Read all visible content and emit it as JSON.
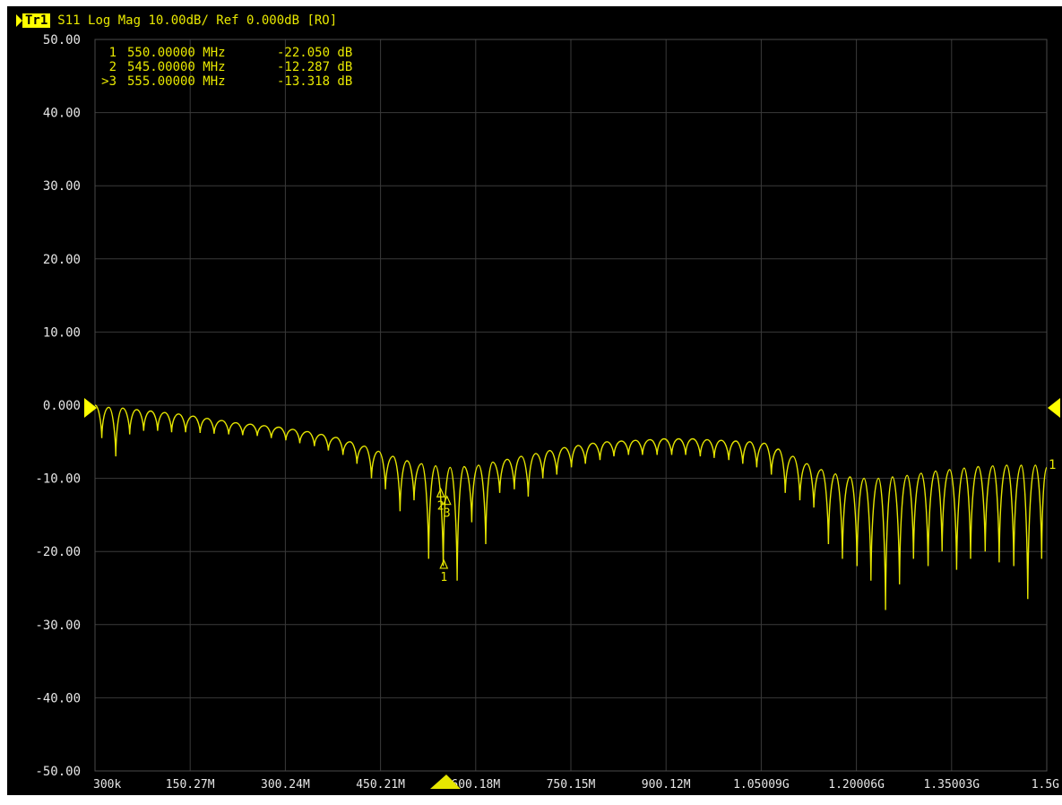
{
  "header": {
    "trace_label": "Tr1",
    "trace_info": "S11 Log Mag 10.00dB/ Ref 0.000dB [RO]"
  },
  "colors": {
    "background": "#000000",
    "grid": "#3a3a3a",
    "trace": "#e6e600",
    "ref_marker": "#ffff00",
    "axis_text": "#e6e6e6"
  },
  "marker_table": [
    {
      "id": "1",
      "freq": "550.00000 MHz",
      "value": "-22.050 dB"
    },
    {
      "id": "2",
      "freq": "545.00000 MHz",
      "value": "-12.287 dB"
    },
    {
      "id": ">3",
      "freq": "555.00000 MHz",
      "value": "-13.318 dB"
    }
  ],
  "chart_data": {
    "type": "line",
    "title": "S11 Log Mag 10.00dB/ Ref 0.000dB [RO]",
    "xlabel": "",
    "ylabel": "",
    "x_range_hz": [
      300000,
      1500000000
    ],
    "ylim": [
      -50,
      50
    ],
    "y_ticks": [
      "50.00",
      "40.00",
      "30.00",
      "20.00",
      "10.00",
      "0.000",
      "-10.00",
      "-20.00",
      "-30.00",
      "-40.00",
      "-50.00"
    ],
    "x_ticks": [
      "300k",
      "150.27M",
      "300.24M",
      "450.21M",
      "600.18M",
      "750.15M",
      "900.12M",
      "1.05009G",
      "1.20006G",
      "1.35003G",
      "1.5G"
    ],
    "grid": true,
    "reference_level_db": 0,
    "markers": [
      {
        "label": "1",
        "x_mhz": 550,
        "y_db": -22.05
      },
      {
        "label": "2",
        "x_mhz": 545,
        "y_db": -12.287
      },
      {
        "label": "3",
        "x_mhz": 555,
        "y_db": -13.318
      }
    ],
    "end_label": "1",
    "series": [
      {
        "peaks": [
          [
            0.3,
            0
          ],
          [
            22,
            -0.3
          ],
          [
            44,
            -0.4
          ],
          [
            66,
            -0.6
          ],
          [
            88,
            -0.8
          ],
          [
            110,
            -1.0
          ],
          [
            132,
            -1.2
          ],
          [
            155,
            -1.5
          ],
          [
            177,
            -1.8
          ],
          [
            200,
            -2.1
          ],
          [
            222,
            -2.4
          ],
          [
            245,
            -2.6
          ],
          [
            267,
            -2.8
          ],
          [
            290,
            -3.0
          ],
          [
            312,
            -3.3
          ],
          [
            335,
            -3.6
          ],
          [
            357,
            -4.0
          ],
          [
            380,
            -4.4
          ],
          [
            402,
            -5.0
          ],
          [
            425,
            -5.6
          ],
          [
            447,
            -6.3
          ],
          [
            470,
            -7.0
          ],
          [
            492,
            -7.6
          ],
          [
            515,
            -8.0
          ],
          [
            537,
            -8.3
          ],
          [
            560,
            -8.5
          ],
          [
            582,
            -8.4
          ],
          [
            605,
            -8.2
          ],
          [
            627,
            -7.8
          ],
          [
            650,
            -7.4
          ],
          [
            672,
            -7.0
          ],
          [
            695,
            -6.6
          ],
          [
            717,
            -6.2
          ],
          [
            740,
            -5.8
          ],
          [
            762,
            -5.5
          ],
          [
            785,
            -5.2
          ],
          [
            807,
            -5.0
          ],
          [
            830,
            -4.9
          ],
          [
            852,
            -4.8
          ],
          [
            875,
            -4.7
          ],
          [
            897,
            -4.6
          ],
          [
            920,
            -4.6
          ],
          [
            942,
            -4.6
          ],
          [
            965,
            -4.7
          ],
          [
            987,
            -4.8
          ],
          [
            1010,
            -4.9
          ],
          [
            1032,
            -5.0
          ],
          [
            1055,
            -5.2
          ],
          [
            1077,
            -6.0
          ],
          [
            1100,
            -7.0
          ],
          [
            1122,
            -8.0
          ],
          [
            1145,
            -8.8
          ],
          [
            1167,
            -9.4
          ],
          [
            1190,
            -9.8
          ],
          [
            1212,
            -10.0
          ],
          [
            1235,
            -10.0
          ],
          [
            1257,
            -9.8
          ],
          [
            1280,
            -9.6
          ],
          [
            1302,
            -9.3
          ],
          [
            1325,
            -9.0
          ],
          [
            1347,
            -8.8
          ],
          [
            1370,
            -8.6
          ],
          [
            1392,
            -8.4
          ],
          [
            1415,
            -8.3
          ],
          [
            1437,
            -8.2
          ],
          [
            1460,
            -8.2
          ],
          [
            1482,
            -8.2
          ],
          [
            1500,
            -8.5
          ]
        ],
        "nulls": [
          [
            11,
            -4.5
          ],
          [
            33,
            -7.0
          ],
          [
            55,
            -4.0
          ],
          [
            77,
            -3.5
          ],
          [
            99,
            -3.5
          ],
          [
            121,
            -3.7
          ],
          [
            143,
            -3.7
          ],
          [
            166,
            -3.8
          ],
          [
            188,
            -3.9
          ],
          [
            211,
            -4.0
          ],
          [
            233,
            -4.1
          ],
          [
            256,
            -4.2
          ],
          [
            278,
            -4.5
          ],
          [
            301,
            -4.8
          ],
          [
            323,
            -5.2
          ],
          [
            346,
            -5.6
          ],
          [
            368,
            -6.2
          ],
          [
            391,
            -6.8
          ],
          [
            413,
            -8.0
          ],
          [
            436,
            -10.0
          ],
          [
            458,
            -11.5
          ],
          [
            481,
            -14.5
          ],
          [
            503,
            -13.0
          ],
          [
            526,
            -21.0
          ],
          [
            549,
            -22.0
          ],
          [
            571,
            -24.0
          ],
          [
            594,
            -16.0
          ],
          [
            616,
            -19.0
          ],
          [
            638,
            -12.0
          ],
          [
            661,
            -11.5
          ],
          [
            683,
            -12.5
          ],
          [
            706,
            -10.0
          ],
          [
            728,
            -9.5
          ],
          [
            751,
            -8.5
          ],
          [
            773,
            -8.0
          ],
          [
            796,
            -7.5
          ],
          [
            818,
            -7.0
          ],
          [
            841,
            -6.8
          ],
          [
            863,
            -6.8
          ],
          [
            886,
            -6.8
          ],
          [
            909,
            -6.8
          ],
          [
            931,
            -6.8
          ],
          [
            954,
            -7.0
          ],
          [
            976,
            -7.2
          ],
          [
            999,
            -7.5
          ],
          [
            1021,
            -8.0
          ],
          [
            1043,
            -8.5
          ],
          [
            1066,
            -9.5
          ],
          [
            1088,
            -12.0
          ],
          [
            1111,
            -13.0
          ],
          [
            1133,
            -14.0
          ],
          [
            1156,
            -19.0
          ],
          [
            1178,
            -21.0
          ],
          [
            1201,
            -22.0
          ],
          [
            1223,
            -24.0
          ],
          [
            1246,
            -28.0
          ],
          [
            1268,
            -24.5
          ],
          [
            1290,
            -21.0
          ],
          [
            1313,
            -22.0
          ],
          [
            1335,
            -20.0
          ],
          [
            1358,
            -22.5
          ],
          [
            1380,
            -21.0
          ],
          [
            1403,
            -20.0
          ],
          [
            1425,
            -21.5
          ],
          [
            1448,
            -22.0
          ],
          [
            1470,
            -26.5
          ],
          [
            1492,
            -21.0
          ]
        ]
      }
    ]
  }
}
